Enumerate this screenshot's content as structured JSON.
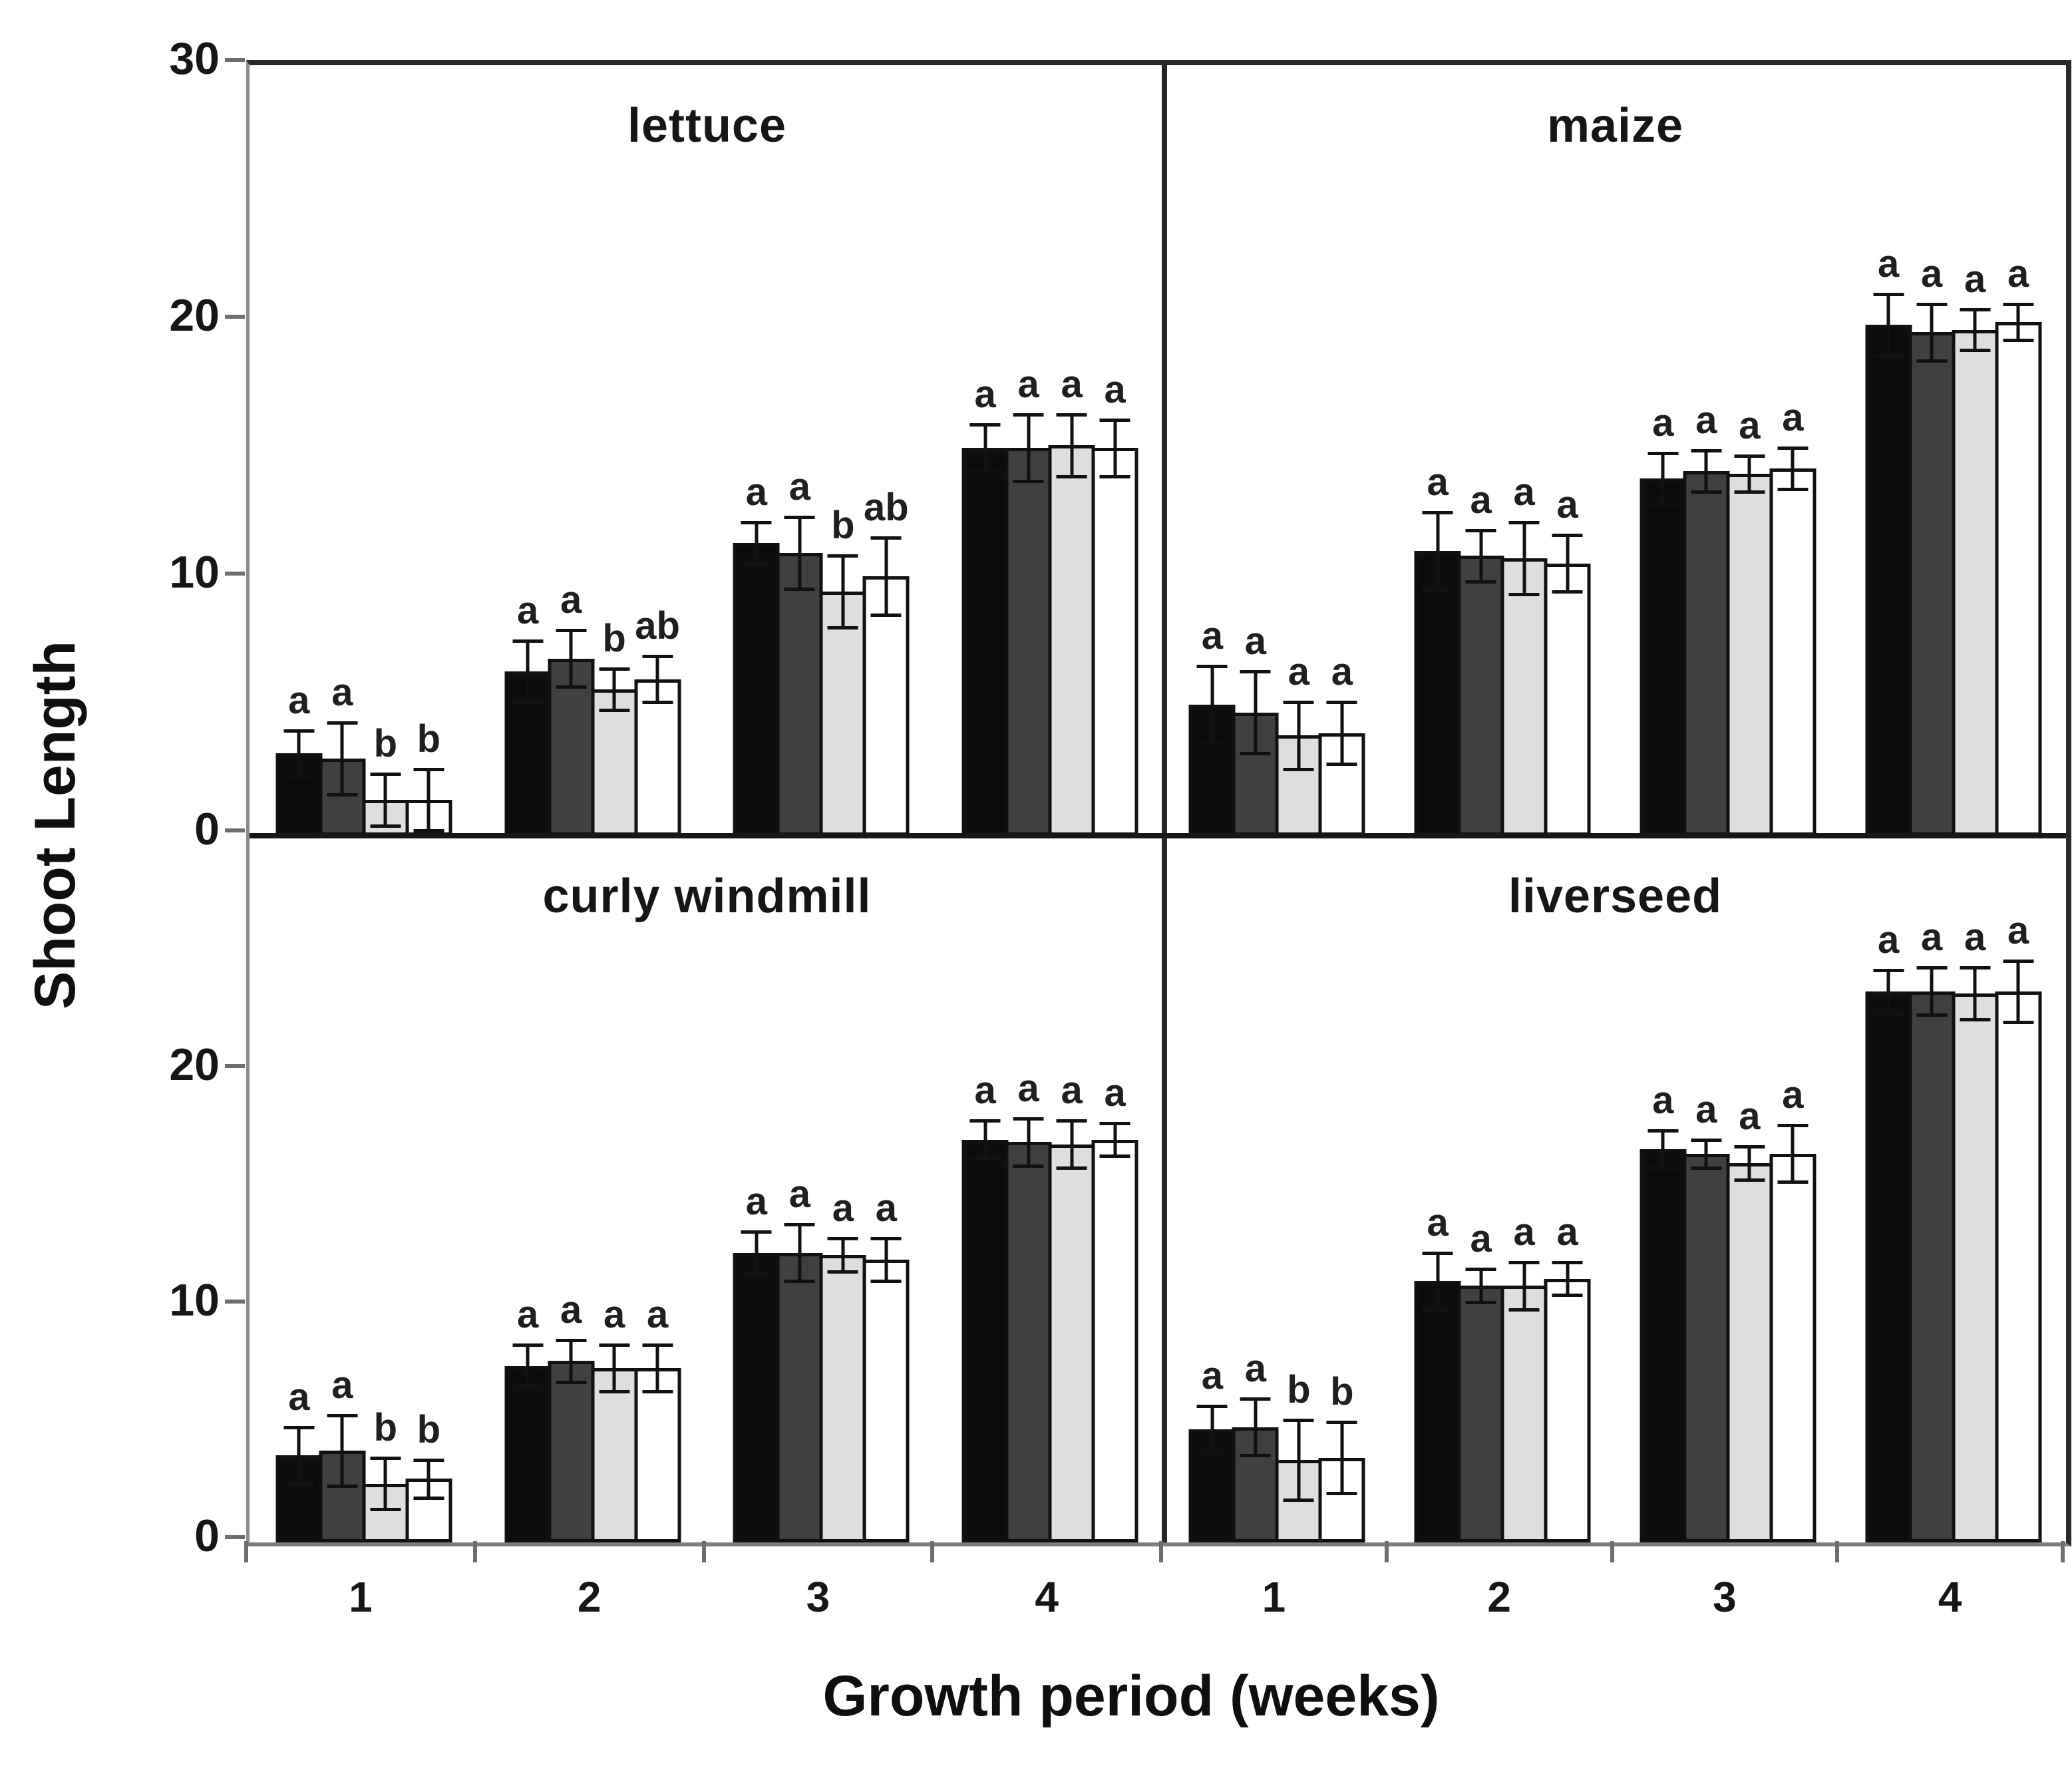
{
  "figure": {
    "ylabel": "Shoot Length",
    "xlabel": "Growth period (weeks)"
  },
  "colors": {
    "background": "#ffffff",
    "bar_border": "#111111",
    "error_bar": "#111111",
    "series_fills": [
      "#0d0d0d",
      "#404040",
      "#dedede",
      "#ffffff"
    ],
    "axis_line": "#8a8a8a",
    "frame_line": "#2a2a2a"
  },
  "chart_data": {
    "type": "bar",
    "title": "",
    "xlabel": "Growth period (weeks)",
    "ylabel": "Shoot Length",
    "grid": "off",
    "legend": "none",
    "layout": "2x2 panels, shared axes",
    "x_ticklabels": [
      "1",
      "2",
      "3",
      "4"
    ],
    "ylim": [
      0,
      30
    ],
    "yticks_top_row": [
      30,
      20,
      10,
      0
    ],
    "yticks_bottom_row": [
      20,
      10,
      0
    ],
    "series_names": [
      "black",
      "dark-gray",
      "light-gray",
      "white"
    ],
    "error_bars": "plus-minus with caps",
    "significance_letters": "letters above error bars",
    "panels": [
      {
        "name": "lettuce",
        "row": 0,
        "col": 0,
        "groups": [
          {
            "week": "1",
            "values": [
              3.2,
              3.0,
              1.4,
              1.4
            ],
            "errors": [
              0.9,
              1.4,
              1.0,
              1.2
            ],
            "letters": [
              "a",
              "a",
              "b",
              "b"
            ]
          },
          {
            "week": "2",
            "values": [
              6.4,
              6.9,
              5.7,
              6.1
            ],
            "errors": [
              1.2,
              1.1,
              0.8,
              0.9
            ],
            "letters": [
              "a",
              "a",
              "b",
              "ab"
            ]
          },
          {
            "week": "3",
            "values": [
              11.4,
              11.0,
              9.5,
              10.1
            ],
            "errors": [
              0.8,
              1.4,
              1.4,
              1.5
            ],
            "letters": [
              "a",
              "a",
              "b",
              "ab"
            ]
          },
          {
            "week": "4",
            "values": [
              15.1,
              15.1,
              15.2,
              15.1
            ],
            "errors": [
              0.9,
              1.3,
              1.2,
              1.1
            ],
            "letters": [
              "a",
              "a",
              "a",
              "a"
            ]
          }
        ]
      },
      {
        "name": "maize",
        "row": 0,
        "col": 1,
        "groups": [
          {
            "week": "1",
            "values": [
              5.1,
              4.8,
              3.9,
              4.0
            ],
            "errors": [
              1.5,
              1.6,
              1.3,
              1.2
            ],
            "letters": [
              "a",
              "a",
              "a",
              "a"
            ]
          },
          {
            "week": "2",
            "values": [
              11.1,
              10.9,
              10.8,
              10.6
            ],
            "errors": [
              1.5,
              1.0,
              1.4,
              1.1
            ],
            "letters": [
              "a",
              "a",
              "a",
              "a"
            ]
          },
          {
            "week": "3",
            "values": [
              13.9,
              14.2,
              14.1,
              14.3
            ],
            "errors": [
              1.0,
              0.8,
              0.7,
              0.8
            ],
            "letters": [
              "a",
              "a",
              "a",
              "a"
            ]
          },
          {
            "week": "4",
            "values": [
              19.9,
              19.6,
              19.7,
              20.0
            ],
            "errors": [
              1.2,
              1.1,
              0.8,
              0.7
            ],
            "letters": [
              "a",
              "a",
              "a",
              "a"
            ]
          }
        ]
      },
      {
        "name": "curly windmill",
        "row": 1,
        "col": 0,
        "groups": [
          {
            "week": "1",
            "values": [
              3.7,
              3.9,
              2.5,
              2.7
            ],
            "errors": [
              1.2,
              1.5,
              1.1,
              0.8
            ],
            "letters": [
              "a",
              "a",
              "b",
              "b"
            ]
          },
          {
            "week": "2",
            "values": [
              7.5,
              7.7,
              7.4,
              7.4
            ],
            "errors": [
              0.9,
              0.9,
              1.0,
              1.0
            ],
            "letters": [
              "a",
              "a",
              "a",
              "a"
            ]
          },
          {
            "week": "3",
            "values": [
              12.3,
              12.3,
              12.2,
              12.0
            ],
            "errors": [
              0.9,
              1.2,
              0.7,
              0.9
            ],
            "letters": [
              "a",
              "a",
              "a",
              "a"
            ]
          },
          {
            "week": "4",
            "values": [
              17.1,
              17.0,
              16.9,
              17.1
            ],
            "errors": [
              0.8,
              1.0,
              1.0,
              0.7
            ],
            "letters": [
              "a",
              "a",
              "a",
              "a"
            ]
          }
        ]
      },
      {
        "name": "liverseed",
        "row": 1,
        "col": 1,
        "groups": [
          {
            "week": "1",
            "values": [
              4.8,
              4.9,
              3.5,
              3.6
            ],
            "errors": [
              1.0,
              1.2,
              1.7,
              1.5
            ],
            "letters": [
              "a",
              "a",
              "b",
              "b"
            ]
          },
          {
            "week": "2",
            "values": [
              11.1,
              10.9,
              10.9,
              11.2
            ],
            "errors": [
              1.2,
              0.7,
              1.0,
              0.7
            ],
            "letters": [
              "a",
              "a",
              "a",
              "a"
            ]
          },
          {
            "week": "3",
            "values": [
              16.7,
              16.5,
              16.1,
              16.5
            ],
            "errors": [
              0.8,
              0.6,
              0.7,
              1.2
            ],
            "letters": [
              "a",
              "a",
              "a",
              "a"
            ]
          },
          {
            "week": "4",
            "values": [
              23.4,
              23.4,
              23.3,
              23.4
            ],
            "errors": [
              0.9,
              1.0,
              1.1,
              1.3
            ],
            "letters": [
              "a",
              "a",
              "a",
              "a"
            ]
          }
        ]
      }
    ]
  }
}
